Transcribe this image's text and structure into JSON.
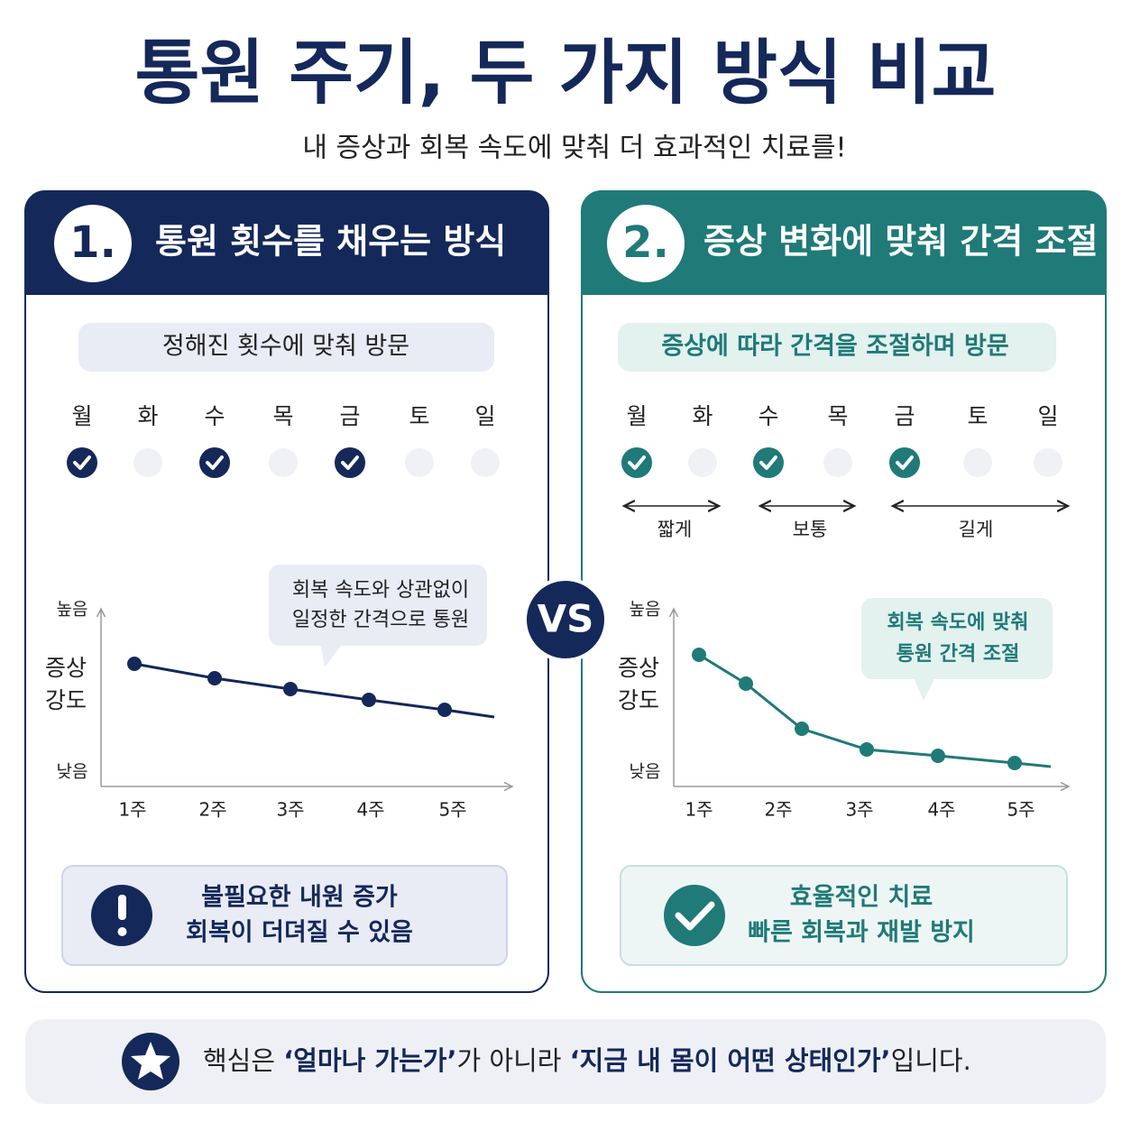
{
  "title": "통원 주기, 두 가지 방식 비교",
  "subtitle": "내 증상과 회복 속도에 맞춰 더 효과적인 치료를!",
  "vs": "VS",
  "panels": [
    {
      "number": "1.",
      "heading": "통원 횟수를 채우는 방식",
      "pill": "정해진 횟수에 맞춰 방문",
      "days": [
        "월",
        "화",
        "수",
        "목",
        "금",
        "토",
        "일"
      ],
      "chart": {
        "y_high": "높음",
        "y_low": "낮음",
        "y_label": [
          "증상",
          "강도"
        ],
        "weeks": [
          "1주",
          "2주",
          "3주",
          "4주",
          "5주"
        ],
        "callout": [
          "회복 속도와 상관없이",
          "일정한 간격으로 통원"
        ]
      },
      "result": [
        "불필요한 내원 증가",
        "회복이 더뎌질 수 있음"
      ]
    },
    {
      "number": "2.",
      "heading": "증상 변화에 맞춰 간격 조절",
      "pill": "증상에 따라 간격을 조절하며 방문",
      "days": [
        "월",
        "화",
        "수",
        "목",
        "금",
        "토",
        "일"
      ],
      "intervals": [
        "짧게",
        "보통",
        "길게"
      ],
      "chart": {
        "y_high": "높음",
        "y_low": "낮음",
        "y_label": [
          "증상",
          "강도"
        ],
        "weeks": [
          "1주",
          "2주",
          "3주",
          "4주",
          "5주"
        ],
        "callout": [
          "회복 속도에 맞춰",
          "통원 간격 조절"
        ]
      },
      "result": [
        "효율적인 치료",
        "빠른 회복과 재발 방지"
      ]
    }
  ],
  "footer": [
    "핵심은 ",
    "‘얼마나 가는가’",
    "가 아니라 ",
    "‘지금 내 몸이 어떤 상태인가’",
    "입니다."
  ]
}
